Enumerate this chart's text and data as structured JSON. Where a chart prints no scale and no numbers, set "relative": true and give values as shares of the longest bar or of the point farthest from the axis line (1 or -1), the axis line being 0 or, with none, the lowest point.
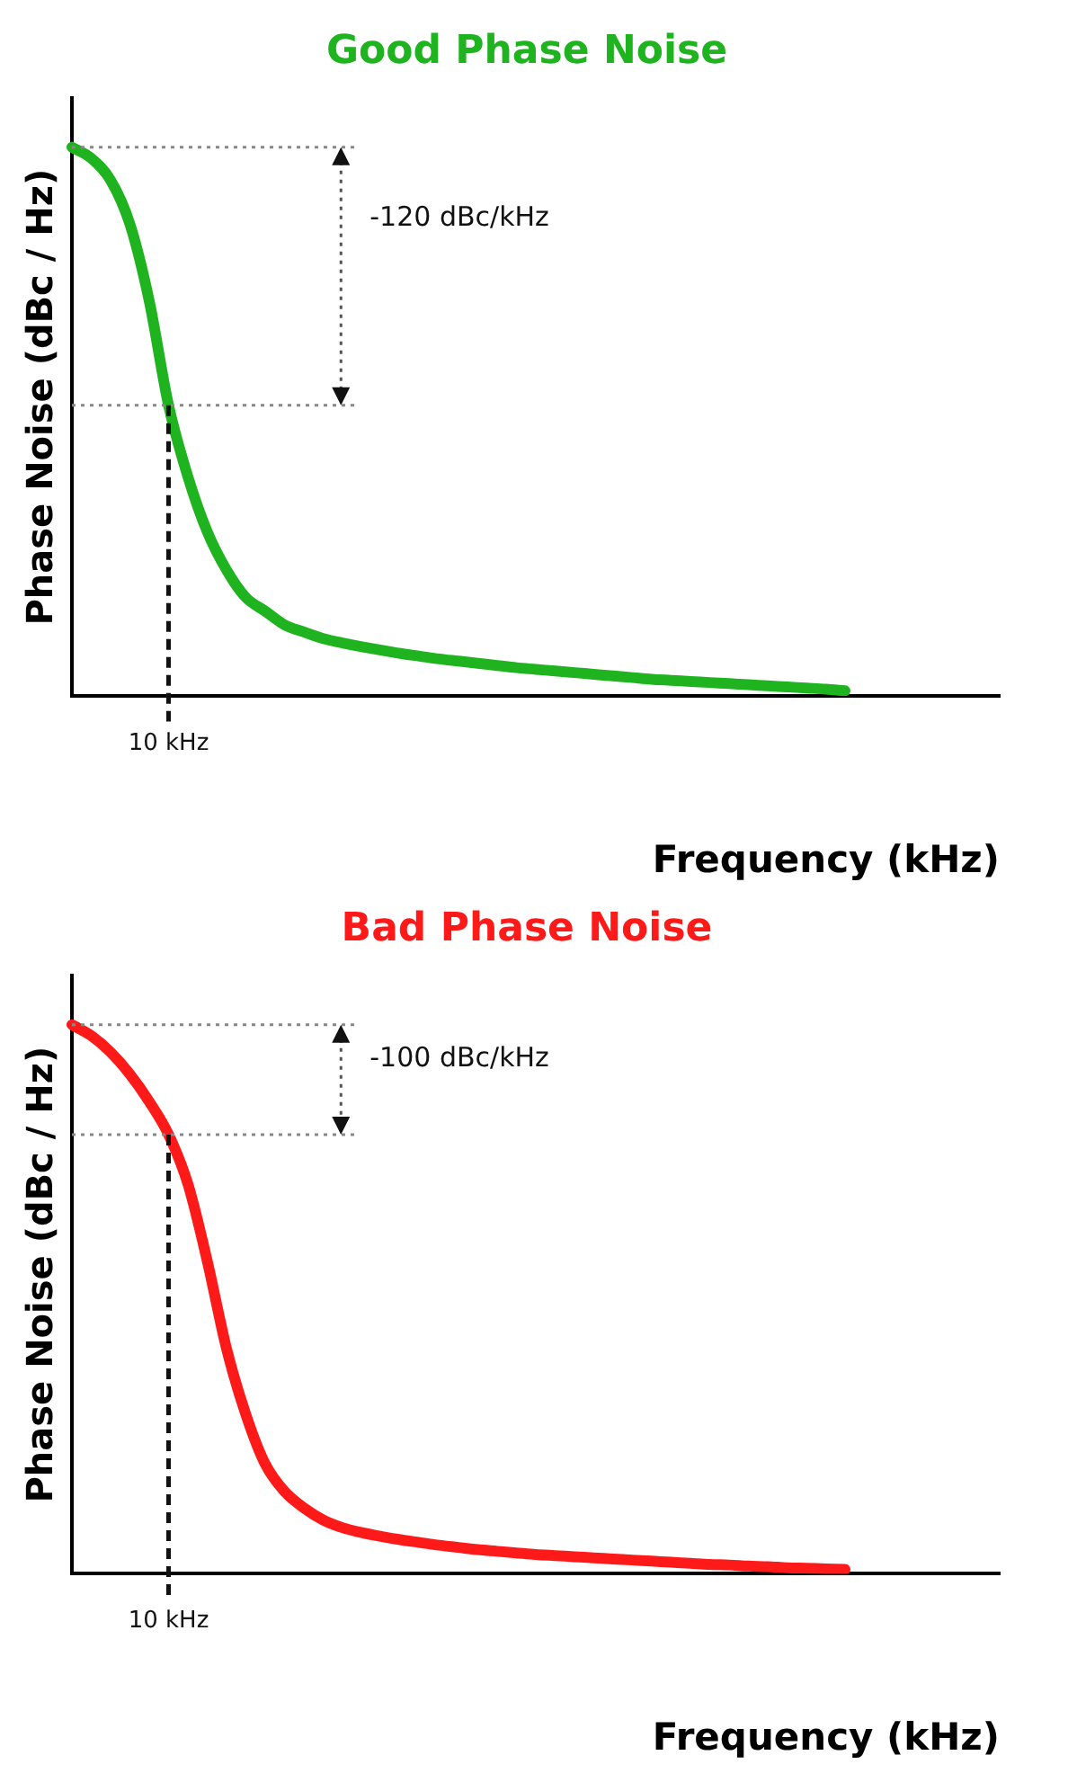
{
  "chart_data": [
    {
      "type": "line",
      "title": "Good Phase Noise",
      "xlabel": "Frequency (kHz)",
      "ylabel": "Phase Noise (dBc / Hz)",
      "relative": true,
      "categories": [
        null,
        null,
        null,
        null,
        null,
        null,
        null,
        null,
        null,
        null,
        null,
        null,
        null,
        null,
        null,
        null,
        null,
        null,
        null,
        null,
        null,
        null,
        null,
        null,
        null,
        null,
        null,
        null,
        null,
        null,
        null,
        null,
        null,
        null,
        null,
        null,
        null,
        null,
        null,
        null,
        null,
        null,
        null,
        null,
        null,
        null,
        null,
        null,
        null
      ],
      "series": [
        {
          "color": "#1fb31f",
          "values": [
            1.0,
            0.98,
            0.94,
            0.86,
            0.72,
            0.53,
            0.4,
            0.3,
            0.23,
            0.18,
            0.155,
            0.13,
            0.117,
            0.105,
            0.097,
            0.09,
            0.084,
            0.078,
            0.073,
            0.068,
            0.064,
            0.06,
            0.056,
            0.052,
            0.049,
            0.046,
            0.043,
            0.04,
            0.037,
            0.034,
            0.031,
            0.029,
            0.027,
            0.025,
            0.023,
            0.021,
            0.019,
            0.017,
            0.015,
            0.013,
            0.01,
            null,
            null,
            null,
            null,
            null,
            null,
            null,
            null
          ]
        }
      ],
      "ref_lines": [
        {
          "axis": "y",
          "value": 1.0,
          "color": "#888888",
          "line_style": "dotted"
        },
        {
          "axis": "y",
          "value": 0.53,
          "color": "#888888",
          "line_style": "dotted"
        }
      ],
      "annotations": [
        "-120 dBc/kHz",
        "10 kHz"
      ]
    },
    {
      "type": "line",
      "title": "Bad Phase Noise",
      "xlabel": "Frequency (kHz)",
      "ylabel": "Phase Noise (dBc / Hz)",
      "relative": true,
      "categories": [
        null,
        null,
        null,
        null,
        null,
        null,
        null,
        null,
        null,
        null,
        null,
        null,
        null,
        null,
        null,
        null,
        null,
        null,
        null,
        null,
        null,
        null,
        null,
        null,
        null,
        null,
        null,
        null,
        null,
        null,
        null,
        null,
        null,
        null,
        null,
        null,
        null,
        null,
        null,
        null,
        null,
        null,
        null,
        null,
        null,
        null,
        null,
        null,
        null
      ],
      "series": [
        {
          "color": "#ff1a1a",
          "values": [
            1.0,
            0.98,
            0.95,
            0.91,
            0.86,
            0.8,
            0.71,
            0.57,
            0.41,
            0.29,
            0.2,
            0.15,
            0.12,
            0.098,
            0.084,
            0.075,
            0.068,
            0.062,
            0.057,
            0.052,
            0.048,
            0.044,
            0.041,
            0.038,
            0.035,
            0.033,
            0.031,
            0.029,
            0.027,
            0.025,
            0.023,
            0.021,
            0.019,
            0.017,
            0.016,
            0.014,
            0.013,
            0.011,
            0.01,
            0.009,
            0.008,
            null,
            null,
            null,
            null,
            null,
            null,
            null,
            null
          ]
        }
      ],
      "ref_lines": [
        {
          "axis": "y",
          "value": 1.0,
          "color": "#888888",
          "line_style": "dotted"
        },
        {
          "axis": "y",
          "value": 0.8,
          "color": "#888888",
          "line_style": "dotted"
        }
      ],
      "annotations": [
        "-100 dBc/kHz",
        "10 kHz"
      ]
    }
  ]
}
